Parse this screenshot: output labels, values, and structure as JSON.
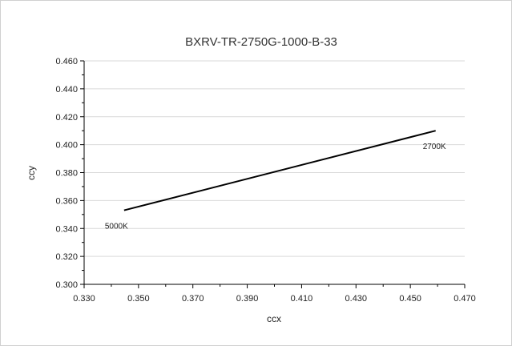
{
  "chart_data": {
    "type": "line",
    "title": "BXRV-TR-2750G-1000-B-33",
    "xlabel": "ccx",
    "ylabel": "ccy",
    "xlim": [
      0.33,
      0.47
    ],
    "ylim": [
      0.3,
      0.46
    ],
    "x_ticks": [
      "0.330",
      "0.350",
      "0.370",
      "0.390",
      "0.410",
      "0.430",
      "0.450",
      "0.470"
    ],
    "y_ticks": [
      "0.300",
      "0.320",
      "0.340",
      "0.360",
      "0.380",
      "0.400",
      "0.420",
      "0.440",
      "0.460"
    ],
    "grid": true,
    "series": [
      {
        "x": [
          0.3447,
          0.4593
        ],
        "y": [
          0.353,
          0.41
        ],
        "color": "#000000"
      }
    ],
    "annotations": [
      {
        "text": "5000K",
        "x": 0.3447,
        "y": 0.353
      },
      {
        "text": "2700K",
        "x": 0.4593,
        "y": 0.41
      }
    ]
  }
}
